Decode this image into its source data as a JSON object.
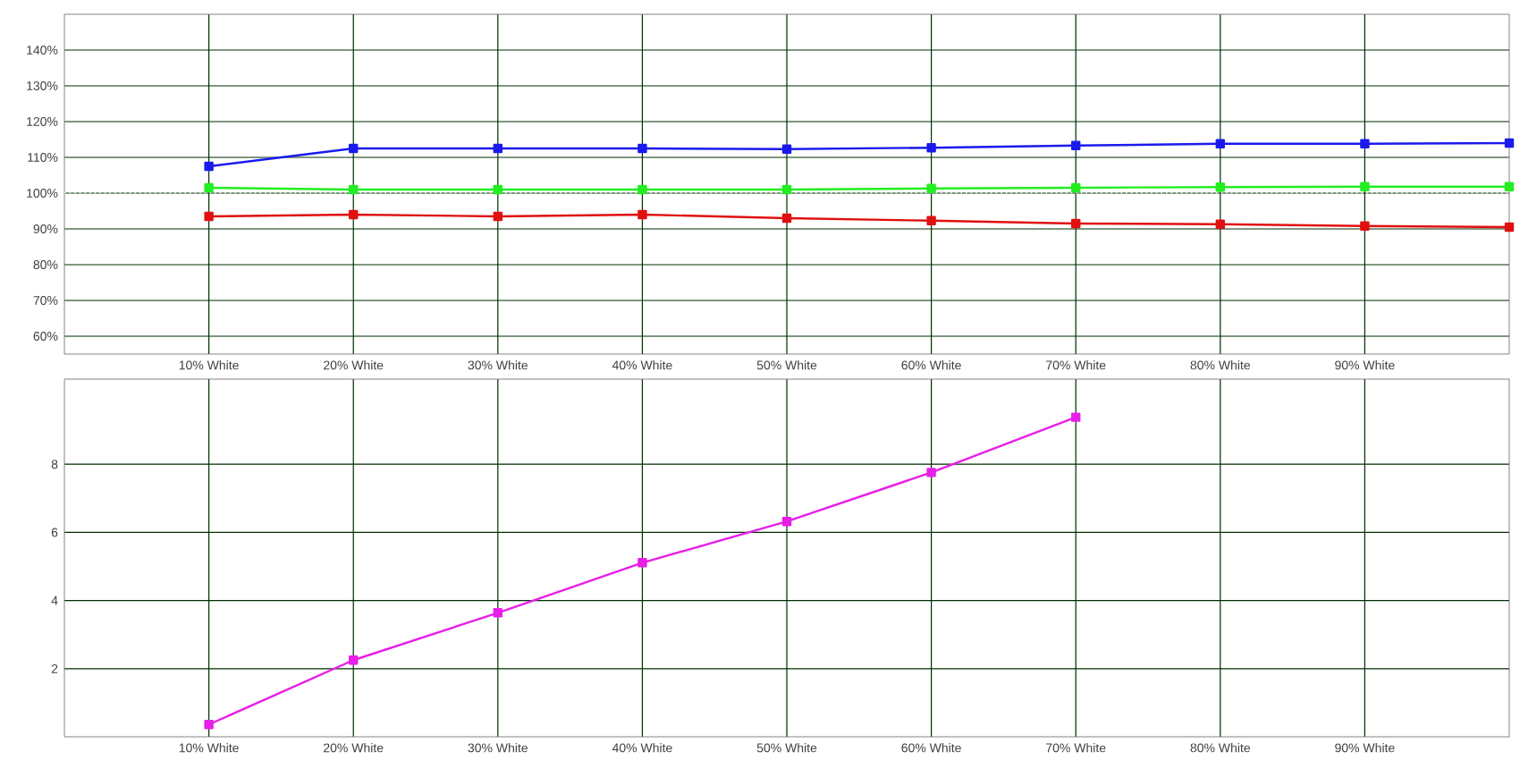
{
  "chart_data": [
    {
      "type": "line",
      "x": [
        10,
        20,
        30,
        40,
        50,
        60,
        70,
        80,
        90,
        100
      ],
      "xlim": [
        0,
        100
      ],
      "xticks": [
        {
          "value": 10,
          "label": "10% White"
        },
        {
          "value": 20,
          "label": "20% White"
        },
        {
          "value": 30,
          "label": "30% White"
        },
        {
          "value": 40,
          "label": "40% White"
        },
        {
          "value": 50,
          "label": "50% White"
        },
        {
          "value": 60,
          "label": "60% White"
        },
        {
          "value": 70,
          "label": "70% White"
        },
        {
          "value": 80,
          "label": "80% White"
        },
        {
          "value": 90,
          "label": "90% White"
        }
      ],
      "ylim": [
        55,
        150
      ],
      "yticks": [
        {
          "value": 60,
          "label": "60%"
        },
        {
          "value": 70,
          "label": "70%"
        },
        {
          "value": 80,
          "label": "80%"
        },
        {
          "value": 90,
          "label": "90%"
        },
        {
          "value": 100,
          "label": "100%"
        },
        {
          "value": 110,
          "label": "110%"
        },
        {
          "value": 120,
          "label": "120%"
        },
        {
          "value": 130,
          "label": "130%"
        },
        {
          "value": 140,
          "label": "140%"
        }
      ],
      "series": [
        {
          "color": "#1a1aee",
          "values": [
            107.5,
            112.5,
            112.5,
            112.5,
            112.3,
            112.7,
            113.3,
            113.8,
            113.8,
            114
          ]
        },
        {
          "color": "#22ee22",
          "values": [
            101.5,
            101,
            101,
            101,
            101,
            101.3,
            101.5,
            101.7,
            101.8,
            101.8
          ]
        },
        {
          "color": "#e01010",
          "values": [
            93.5,
            94,
            93.5,
            94,
            93,
            92.3,
            91.5,
            91.3,
            90.8,
            90.5
          ]
        }
      ],
      "ref_lines": [
        {
          "axis": "y",
          "value": 100,
          "label": null,
          "color": "#ffffff",
          "line_style": "dotted"
        }
      ],
      "grid": true,
      "marker": "square",
      "line_style": "solid"
    },
    {
      "type": "line",
      "x": [
        10,
        20,
        30,
        40,
        50,
        60,
        70
      ],
      "xlim": [
        0,
        100
      ],
      "xticks": [
        {
          "value": 10,
          "label": "10% White"
        },
        {
          "value": 20,
          "label": "20% White"
        },
        {
          "value": 30,
          "label": "30% White"
        },
        {
          "value": 40,
          "label": "40% White"
        },
        {
          "value": 50,
          "label": "50% White"
        },
        {
          "value": 60,
          "label": "60% White"
        },
        {
          "value": 70,
          "label": "70% White"
        },
        {
          "value": 80,
          "label": "80% White"
        },
        {
          "value": 90,
          "label": "90% White"
        }
      ],
      "ylim": [
        0,
        10.5
      ],
      "yticks": [
        2,
        4,
        6,
        8
      ],
      "series": [
        {
          "color": "#e81ee8",
          "values": [
            0.36,
            2.25,
            3.64,
            5.11,
            6.32,
            7.76,
            9.38
          ]
        }
      ],
      "grid": true,
      "marker": "square",
      "line_style": "solid"
    }
  ]
}
